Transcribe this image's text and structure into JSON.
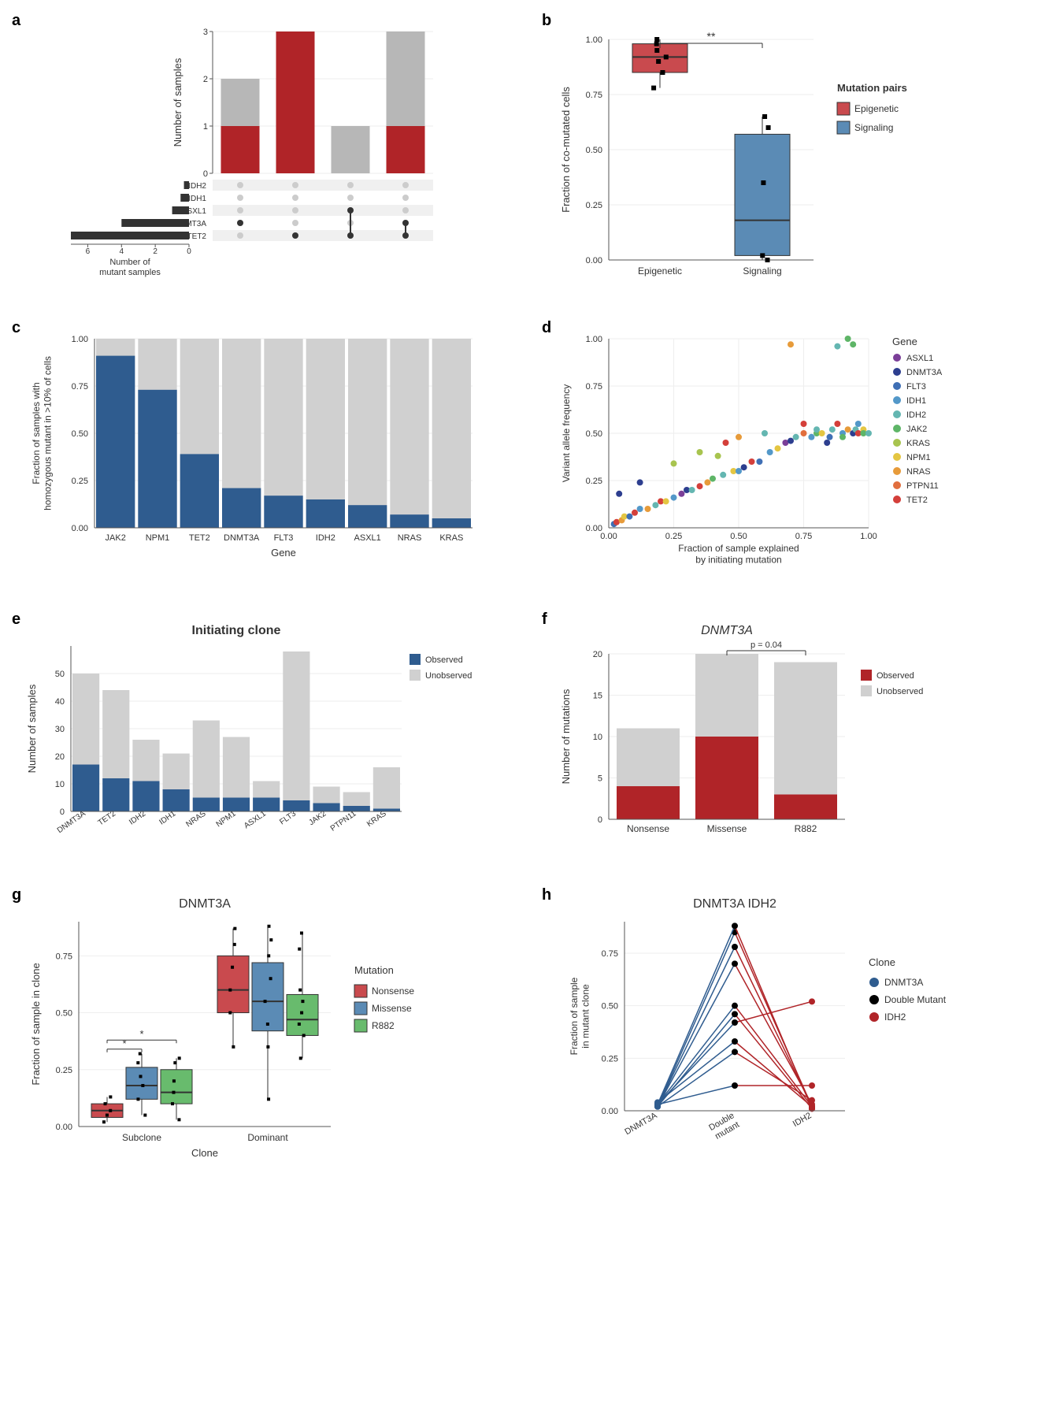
{
  "colors": {
    "red": "#b02428",
    "blue": "#2f5c8f",
    "steelblue": "#3c6e9e",
    "grey": "#b7b7b7",
    "lightgrey": "#d0d0d0",
    "green": "#5cb85c",
    "black": "#000000",
    "white": "#ffffff",
    "gridline": "#e8e8e8",
    "axis": "#555555"
  },
  "panel_a": {
    "label": "a",
    "bar_chart": {
      "ylabel": "Number of samples",
      "ymax": 3,
      "yticks": [
        0,
        1,
        2,
        3
      ],
      "bars": [
        {
          "red": 1,
          "grey": 1
        },
        {
          "red": 3,
          "grey": 0
        },
        {
          "red": 0,
          "grey": 1
        },
        {
          "red": 1,
          "grey": 2
        }
      ]
    },
    "upset": {
      "genes": [
        "IDH2",
        "IDH1",
        "ASXL1",
        "DNMT3A",
        "TET2"
      ],
      "sets": [
        [
          false,
          false,
          false,
          true,
          false
        ],
        [
          false,
          false,
          false,
          false,
          true
        ],
        [
          false,
          false,
          true,
          false,
          true
        ],
        [
          false,
          false,
          false,
          true,
          true
        ]
      ],
      "hbar": {
        "xlabel": "Number of\nmutant samples",
        "xticks": [
          0,
          2,
          4,
          6
        ],
        "values": {
          "IDH2": 0.3,
          "IDH1": 0.5,
          "ASXL1": 1,
          "DNMT3A": 4,
          "TET2": 7
        }
      }
    }
  },
  "panel_b": {
    "label": "b",
    "ylabel": "Fraction of co-mutated cells",
    "ylim": [
      0,
      1
    ],
    "yticks": [
      0,
      0.25,
      0.5,
      0.75,
      1.0
    ],
    "categories": [
      "Epigenetic",
      "Signaling"
    ],
    "sig": "**",
    "legend_title": "Mutation pairs",
    "legend": [
      {
        "label": "Epigenetic",
        "color": "#c94a4e"
      },
      {
        "label": "Signaling",
        "color": "#5b8bb5"
      }
    ],
    "boxes": [
      {
        "cat": "Epigenetic",
        "min": 0.78,
        "q1": 0.85,
        "med": 0.92,
        "q3": 0.98,
        "max": 1.0,
        "color": "#c94a4e",
        "points": [
          0.78,
          0.85,
          0.9,
          0.92,
          0.95,
          0.98,
          1.0
        ]
      },
      {
        "cat": "Signaling",
        "min": 0.0,
        "q1": 0.02,
        "med": 0.18,
        "q3": 0.57,
        "max": 0.65,
        "color": "#5b8bb5",
        "points": [
          0.0,
          0.02,
          0.35,
          0.6,
          0.65
        ]
      }
    ]
  },
  "panel_c": {
    "label": "c",
    "ylabel": "Fraction of samples with\nhomozygous mutant in >10% of cells",
    "xlabel": "Gene",
    "ylim": [
      0,
      1
    ],
    "yticks": [
      0,
      0.25,
      0.5,
      0.75,
      1.0
    ],
    "categories": [
      "JAK2",
      "NPM1",
      "TET2",
      "DNMT3A",
      "FLT3",
      "IDH2",
      "ASXL1",
      "NRAS",
      "KRAS"
    ],
    "values": [
      0.91,
      0.73,
      0.39,
      0.21,
      0.17,
      0.15,
      0.12,
      0.07,
      0.05
    ],
    "bar_color": "#2f5c8f",
    "bg_color": "#d0d0d0"
  },
  "panel_d": {
    "label": "d",
    "ylabel": "Variant allele frequency",
    "xlabel": "Fraction of sample explained\nby initiating mutation",
    "xlim": [
      0,
      1
    ],
    "ylim": [
      0,
      1
    ],
    "ticks": [
      0,
      0.25,
      0.5,
      0.75,
      1.0
    ],
    "legend_title": "Gene",
    "genes": [
      {
        "name": "ASXL1",
        "color": "#7b3f98"
      },
      {
        "name": "DNMT3A",
        "color": "#2d3e8f"
      },
      {
        "name": "FLT3",
        "color": "#3f6fb5"
      },
      {
        "name": "IDH1",
        "color": "#5398c9"
      },
      {
        "name": "IDH2",
        "color": "#64b6b1"
      },
      {
        "name": "JAK2",
        "color": "#5eb567"
      },
      {
        "name": "KRAS",
        "color": "#a8c44f"
      },
      {
        "name": "NPM1",
        "color": "#e4c642"
      },
      {
        "name": "NRAS",
        "color": "#e79b3a"
      },
      {
        "name": "PTPN11",
        "color": "#e16f3e"
      },
      {
        "name": "TET2",
        "color": "#d43f3a"
      }
    ],
    "points": [
      [
        0.02,
        0.02,
        "#3f6fb5"
      ],
      [
        0.03,
        0.03,
        "#d43f3a"
      ],
      [
        0.04,
        0.18,
        "#2d3e8f"
      ],
      [
        0.05,
        0.04,
        "#e79b3a"
      ],
      [
        0.06,
        0.06,
        "#e4c642"
      ],
      [
        0.08,
        0.06,
        "#3f6fb5"
      ],
      [
        0.1,
        0.08,
        "#d43f3a"
      ],
      [
        0.12,
        0.1,
        "#5398c9"
      ],
      [
        0.12,
        0.24,
        "#2d3e8f"
      ],
      [
        0.15,
        0.1,
        "#e79b3a"
      ],
      [
        0.18,
        0.12,
        "#64b6b1"
      ],
      [
        0.2,
        0.14,
        "#d43f3a"
      ],
      [
        0.22,
        0.14,
        "#e4c642"
      ],
      [
        0.25,
        0.16,
        "#5398c9"
      ],
      [
        0.25,
        0.34,
        "#a8c44f"
      ],
      [
        0.28,
        0.18,
        "#7b3f98"
      ],
      [
        0.3,
        0.2,
        "#2d3e8f"
      ],
      [
        0.32,
        0.2,
        "#64b6b1"
      ],
      [
        0.35,
        0.22,
        "#d43f3a"
      ],
      [
        0.35,
        0.4,
        "#a8c44f"
      ],
      [
        0.38,
        0.24,
        "#e79b3a"
      ],
      [
        0.4,
        0.26,
        "#5eb567"
      ],
      [
        0.42,
        0.38,
        "#a8c44f"
      ],
      [
        0.44,
        0.28,
        "#64b6b1"
      ],
      [
        0.45,
        0.45,
        "#d43f3a"
      ],
      [
        0.48,
        0.3,
        "#e4c642"
      ],
      [
        0.5,
        0.3,
        "#5398c9"
      ],
      [
        0.5,
        0.48,
        "#e79b3a"
      ],
      [
        0.52,
        0.32,
        "#2d3e8f"
      ],
      [
        0.55,
        0.35,
        "#d43f3a"
      ],
      [
        0.58,
        0.35,
        "#3f6fb5"
      ],
      [
        0.6,
        0.5,
        "#64b6b1"
      ],
      [
        0.62,
        0.4,
        "#5398c9"
      ],
      [
        0.65,
        0.42,
        "#e4c642"
      ],
      [
        0.68,
        0.45,
        "#7b3f98"
      ],
      [
        0.7,
        0.46,
        "#2d3e8f"
      ],
      [
        0.7,
        0.97,
        "#e79b3a"
      ],
      [
        0.72,
        0.48,
        "#64b6b1"
      ],
      [
        0.75,
        0.5,
        "#e16f3e"
      ],
      [
        0.75,
        0.55,
        "#d43f3a"
      ],
      [
        0.78,
        0.48,
        "#5398c9"
      ],
      [
        0.8,
        0.5,
        "#5eb567"
      ],
      [
        0.8,
        0.52,
        "#64b6b1"
      ],
      [
        0.82,
        0.5,
        "#e4c642"
      ],
      [
        0.84,
        0.45,
        "#2d3e8f"
      ],
      [
        0.85,
        0.48,
        "#3f6fb5"
      ],
      [
        0.86,
        0.52,
        "#64b6b1"
      ],
      [
        0.88,
        0.55,
        "#d43f3a"
      ],
      [
        0.88,
        0.96,
        "#64b6b1"
      ],
      [
        0.9,
        0.5,
        "#5398c9"
      ],
      [
        0.9,
        0.48,
        "#5eb567"
      ],
      [
        0.92,
        0.52,
        "#e79b3a"
      ],
      [
        0.92,
        1.0,
        "#5eb567"
      ],
      [
        0.94,
        0.5,
        "#2d3e8f"
      ],
      [
        0.94,
        0.97,
        "#5eb567"
      ],
      [
        0.95,
        0.52,
        "#64b6b1"
      ],
      [
        0.96,
        0.5,
        "#d43f3a"
      ],
      [
        0.96,
        0.55,
        "#5398c9"
      ],
      [
        0.98,
        0.52,
        "#e4c642"
      ],
      [
        0.98,
        0.5,
        "#5eb567"
      ],
      [
        1.0,
        0.5,
        "#64b6b1"
      ]
    ]
  },
  "panel_e": {
    "label": "e",
    "title": "Initiating clone",
    "ylabel": "Number of samples",
    "ymax": 60,
    "yticks": [
      0,
      10,
      20,
      30,
      40,
      50
    ],
    "categories": [
      "DNMT3A",
      "TET2",
      "IDH2",
      "IDH1",
      "NRAS",
      "NPM1",
      "ASXL1",
      "FLT3",
      "JAK2",
      "PTPN11",
      "KRAS"
    ],
    "observed": [
      17,
      12,
      11,
      8,
      5,
      5,
      5,
      4,
      3,
      2,
      1
    ],
    "total": [
      50,
      44,
      26,
      21,
      33,
      27,
      11,
      58,
      9,
      7,
      16
    ],
    "legend": [
      {
        "label": "Observed",
        "color": "#2f5c8f"
      },
      {
        "label": "Unobserved",
        "color": "#d0d0d0"
      }
    ]
  },
  "panel_f": {
    "label": "f",
    "title": "DNMT3A",
    "ylabel": "Number of mutations",
    "ymax": 20,
    "yticks": [
      0,
      5,
      10,
      15,
      20
    ],
    "categories": [
      "Nonsense",
      "Missense",
      "R882"
    ],
    "observed": [
      4,
      10,
      3
    ],
    "total": [
      11,
      20,
      19
    ],
    "sig_label": "p = 0.04",
    "legend": [
      {
        "label": "Observed",
        "color": "#b02428"
      },
      {
        "label": "Unobserved",
        "color": "#d0d0d0"
      }
    ]
  },
  "panel_g": {
    "label": "g",
    "title": "DNMT3A",
    "ylabel": "Fraction of sample in clone",
    "xlabel": "Clone",
    "categories": [
      "Subclone",
      "Dominant"
    ],
    "ylim": [
      0,
      0.9
    ],
    "yticks": [
      0,
      0.25,
      0.5,
      0.75
    ],
    "legend_title": "Mutation",
    "mutations": [
      {
        "label": "Nonsense",
        "color": "#c94a4e"
      },
      {
        "label": "Missense",
        "color": "#5b8bb5"
      },
      {
        "label": "R882",
        "color": "#68bb6d"
      }
    ],
    "sig": "*",
    "boxes": {
      "Subclone": [
        {
          "min": 0.02,
          "q1": 0.04,
          "med": 0.07,
          "q3": 0.1,
          "max": 0.13,
          "pts": [
            0.02,
            0.05,
            0.07,
            0.1,
            0.13
          ]
        },
        {
          "min": 0.05,
          "q1": 0.12,
          "med": 0.18,
          "q3": 0.26,
          "max": 0.32,
          "pts": [
            0.05,
            0.12,
            0.18,
            0.22,
            0.28,
            0.32
          ]
        },
        {
          "min": 0.03,
          "q1": 0.1,
          "med": 0.15,
          "q3": 0.25,
          "max": 0.3,
          "pts": [
            0.03,
            0.1,
            0.15,
            0.2,
            0.28,
            0.3
          ]
        }
      ],
      "Dominant": [
        {
          "min": 0.35,
          "q1": 0.5,
          "med": 0.6,
          "q3": 0.75,
          "max": 0.87,
          "pts": [
            0.35,
            0.5,
            0.6,
            0.7,
            0.8,
            0.87
          ]
        },
        {
          "min": 0.12,
          "q1": 0.42,
          "med": 0.55,
          "q3": 0.72,
          "max": 0.88,
          "pts": [
            0.12,
            0.35,
            0.45,
            0.55,
            0.65,
            0.75,
            0.82,
            0.88
          ]
        },
        {
          "min": 0.3,
          "q1": 0.4,
          "med": 0.47,
          "q3": 0.58,
          "max": 0.85,
          "pts": [
            0.3,
            0.4,
            0.45,
            0.5,
            0.55,
            0.6,
            0.78,
            0.85
          ]
        }
      ]
    }
  },
  "panel_h": {
    "label": "h",
    "title": "DNMT3A IDH2",
    "ylabel": "Fraction of sample\nin mutant clone",
    "categories": [
      "DNMT3A",
      "Double\nmutant",
      "IDH2"
    ],
    "ylim": [
      0,
      0.9
    ],
    "yticks": [
      0,
      0.25,
      0.5,
      0.75
    ],
    "legend_title": "Clone",
    "legend": [
      {
        "label": "DNMT3A",
        "color": "#2f5c8f"
      },
      {
        "label": "Double Mutant",
        "color": "#000000"
      },
      {
        "label": "IDH2",
        "color": "#b02428"
      }
    ],
    "lines": [
      {
        "a": 0.02,
        "b": 0.85,
        "c": 0.02
      },
      {
        "a": 0.02,
        "b": 0.78,
        "c": 0.02
      },
      {
        "a": 0.03,
        "b": 0.88,
        "c": 0.01
      },
      {
        "a": 0.02,
        "b": 0.7,
        "c": 0.03
      },
      {
        "a": 0.03,
        "b": 0.5,
        "c": 0.02
      },
      {
        "a": 0.02,
        "b": 0.46,
        "c": 0.01
      },
      {
        "a": 0.03,
        "b": 0.42,
        "c": 0.52
      },
      {
        "a": 0.04,
        "b": 0.33,
        "c": 0.02
      },
      {
        "a": 0.02,
        "b": 0.28,
        "c": 0.05
      },
      {
        "a": 0.03,
        "b": 0.12,
        "c": 0.12
      }
    ]
  }
}
